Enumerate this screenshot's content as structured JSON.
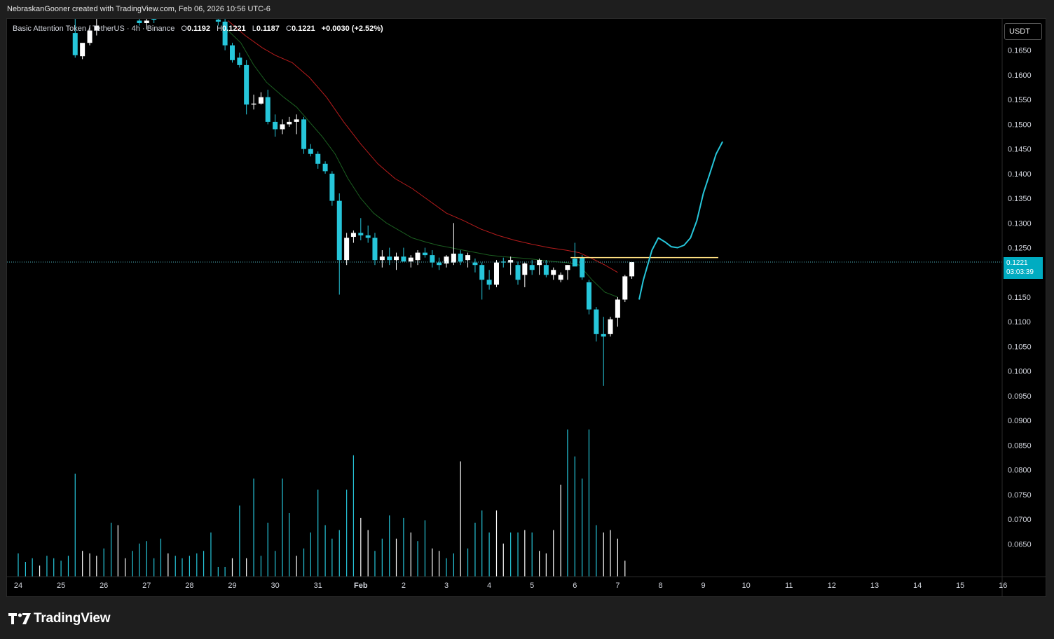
{
  "header": {
    "credit": "NebraskanGooner created with TradingView.com, Feb 06, 2026 10:56 UTC-6"
  },
  "legend": {
    "symbol": "Basic Attention Token / TetherUS · 4h · Binance",
    "o_label": "O",
    "o_value": "0.1192",
    "h_label": "H",
    "h_value": "0.1221",
    "l_label": "L",
    "l_value": "0.1187",
    "c_label": "C",
    "c_value": "0.1221",
    "change": "+0.0030 (+2.52%)"
  },
  "price_axis": {
    "unit_button": "USDT",
    "last_price": "0.1221",
    "countdown": "03:03:39"
  },
  "footer": {
    "logo_icon": "tradingview-logo-icon",
    "brand": "TradingView"
  },
  "colors": {
    "background": "#000000",
    "bear_candle": "#26c6da",
    "bull_candle": "#ffffff",
    "ema_fast": "#1b5e20",
    "ema_slow": "#b71c1c",
    "projection": "#26c6da",
    "resistance": "#ffe082",
    "price_tag": "#00acc1",
    "axis_text": "#d1d4dc"
  },
  "chart_data": {
    "type": "candlestick",
    "timeframe": "4h",
    "yaxis_ticks": [
      "0.1650",
      "0.1600",
      "0.1550",
      "0.1500",
      "0.1450",
      "0.1400",
      "0.1350",
      "0.1300",
      "0.1250",
      "0.1200",
      "0.1150",
      "0.1100",
      "0.1050",
      "0.1000",
      "0.0950",
      "0.0900",
      "0.0850",
      "0.0800",
      "0.0750",
      "0.0700",
      "0.0650"
    ],
    "ylim": [
      0.0595,
      0.1705
    ],
    "xaxis_ticks": [
      "24",
      "25",
      "26",
      "27",
      "28",
      "29",
      "30",
      "31",
      "Feb",
      "2",
      "3",
      "4",
      "5",
      "6",
      "7",
      "8",
      "9",
      "10",
      "11",
      "12",
      "13",
      "14",
      "15",
      "16"
    ],
    "xaxis_start_day": 24,
    "candles": [
      {
        "d": 25.33,
        "o": 0.1685,
        "h": 0.1735,
        "l": 0.1635,
        "c": 0.164
      },
      {
        "d": 25.5,
        "o": 0.1638,
        "h": 0.166,
        "l": 0.1632,
        "c": 0.1665
      },
      {
        "d": 25.67,
        "o": 0.1665,
        "h": 0.17,
        "l": 0.166,
        "c": 0.169
      },
      {
        "d": 25.83,
        "o": 0.169,
        "h": 0.172,
        "l": 0.168,
        "c": 0.17
      },
      {
        "d": 26.83,
        "o": 0.171,
        "h": 0.1725,
        "l": 0.17,
        "c": 0.1705
      },
      {
        "d": 27.0,
        "o": 0.1705,
        "h": 0.1715,
        "l": 0.1692,
        "c": 0.171
      },
      {
        "d": 27.17,
        "o": 0.1715,
        "h": 0.1728,
        "l": 0.1705,
        "c": 0.1712
      },
      {
        "d": 28.67,
        "o": 0.1712,
        "h": 0.1725,
        "l": 0.17,
        "c": 0.1708
      },
      {
        "d": 28.83,
        "o": 0.1708,
        "h": 0.1715,
        "l": 0.169,
        "c": 0.1685
      },
      {
        "d": 28.83,
        "o": 0.169,
        "h": 0.17,
        "l": 0.165,
        "c": 0.166
      },
      {
        "d": 29.0,
        "o": 0.166,
        "h": 0.1665,
        "l": 0.1625,
        "c": 0.163
      },
      {
        "d": 29.17,
        "o": 0.1635,
        "h": 0.1645,
        "l": 0.1615,
        "c": 0.162
      },
      {
        "d": 29.33,
        "o": 0.162,
        "h": 0.163,
        "l": 0.152,
        "c": 0.154
      },
      {
        "d": 29.5,
        "o": 0.154,
        "h": 0.156,
        "l": 0.153,
        "c": 0.1542
      },
      {
        "d": 29.67,
        "o": 0.1542,
        "h": 0.1565,
        "l": 0.154,
        "c": 0.1555
      },
      {
        "d": 29.83,
        "o": 0.1555,
        "h": 0.157,
        "l": 0.15,
        "c": 0.1505
      },
      {
        "d": 30.0,
        "o": 0.1505,
        "h": 0.152,
        "l": 0.1475,
        "c": 0.149
      },
      {
        "d": 30.17,
        "o": 0.149,
        "h": 0.151,
        "l": 0.148,
        "c": 0.15
      },
      {
        "d": 30.33,
        "o": 0.15,
        "h": 0.1515,
        "l": 0.1495,
        "c": 0.1505
      },
      {
        "d": 30.5,
        "o": 0.1505,
        "h": 0.152,
        "l": 0.148,
        "c": 0.151
      },
      {
        "d": 30.67,
        "o": 0.151,
        "h": 0.1515,
        "l": 0.144,
        "c": 0.145
      },
      {
        "d": 30.83,
        "o": 0.145,
        "h": 0.146,
        "l": 0.1435,
        "c": 0.144
      },
      {
        "d": 31.0,
        "o": 0.144,
        "h": 0.1445,
        "l": 0.141,
        "c": 0.142
      },
      {
        "d": 31.17,
        "o": 0.142,
        "h": 0.1425,
        "l": 0.14,
        "c": 0.1405
      },
      {
        "d": 31.33,
        "o": 0.14,
        "h": 0.1405,
        "l": 0.1335,
        "c": 0.1345
      },
      {
        "d": 31.5,
        "o": 0.1345,
        "h": 0.136,
        "l": 0.1155,
        "c": 0.1225
      },
      {
        "d": 31.67,
        "o": 0.1225,
        "h": 0.128,
        "l": 0.1215,
        "c": 0.127
      },
      {
        "d": 31.83,
        "o": 0.1272,
        "h": 0.1285,
        "l": 0.126,
        "c": 0.128
      },
      {
        "d": 32.0,
        "o": 0.128,
        "h": 0.131,
        "l": 0.1265,
        "c": 0.1275
      },
      {
        "d": 32.17,
        "o": 0.1275,
        "h": 0.1295,
        "l": 0.126,
        "c": 0.127
      },
      {
        "d": 32.33,
        "o": 0.127,
        "h": 0.128,
        "l": 0.1215,
        "c": 0.1225
      },
      {
        "d": 32.5,
        "o": 0.1225,
        "h": 0.1245,
        "l": 0.121,
        "c": 0.1232
      },
      {
        "d": 32.67,
        "o": 0.1232,
        "h": 0.125,
        "l": 0.1215,
        "c": 0.1225
      },
      {
        "d": 32.83,
        "o": 0.1225,
        "h": 0.124,
        "l": 0.1205,
        "c": 0.1232
      },
      {
        "d": 33.0,
        "o": 0.1232,
        "h": 0.125,
        "l": 0.1225,
        "c": 0.1222
      },
      {
        "d": 33.17,
        "o": 0.1222,
        "h": 0.1235,
        "l": 0.121,
        "c": 0.123
      },
      {
        "d": 33.33,
        "o": 0.1225,
        "h": 0.1245,
        "l": 0.1215,
        "c": 0.124
      },
      {
        "d": 33.5,
        "o": 0.124,
        "h": 0.125,
        "l": 0.123,
        "c": 0.1235
      },
      {
        "d": 33.67,
        "o": 0.1235,
        "h": 0.1245,
        "l": 0.121,
        "c": 0.122
      },
      {
        "d": 33.83,
        "o": 0.122,
        "h": 0.123,
        "l": 0.1205,
        "c": 0.1215
      },
      {
        "d": 34.0,
        "o": 0.1218,
        "h": 0.1235,
        "l": 0.121,
        "c": 0.1232
      },
      {
        "d": 34.17,
        "o": 0.122,
        "h": 0.13,
        "l": 0.1215,
        "c": 0.1238
      },
      {
        "d": 34.33,
        "o": 0.1238,
        "h": 0.1245,
        "l": 0.1215,
        "c": 0.1222
      },
      {
        "d": 34.5,
        "o": 0.1225,
        "h": 0.124,
        "l": 0.121,
        "c": 0.1235
      },
      {
        "d": 34.67,
        "o": 0.122,
        "h": 0.1228,
        "l": 0.12,
        "c": 0.1215
      },
      {
        "d": 34.83,
        "o": 0.1215,
        "h": 0.122,
        "l": 0.1145,
        "c": 0.1185
      },
      {
        "d": 35.0,
        "o": 0.1185,
        "h": 0.1205,
        "l": 0.1165,
        "c": 0.1175
      },
      {
        "d": 35.17,
        "o": 0.1175,
        "h": 0.1225,
        "l": 0.117,
        "c": 0.122
      },
      {
        "d": 35.33,
        "o": 0.1222,
        "h": 0.123,
        "l": 0.121,
        "c": 0.122
      },
      {
        "d": 35.5,
        "o": 0.122,
        "h": 0.1232,
        "l": 0.1195,
        "c": 0.1225
      },
      {
        "d": 35.67,
        "o": 0.1215,
        "h": 0.1222,
        "l": 0.1175,
        "c": 0.1185
      },
      {
        "d": 35.83,
        "o": 0.1195,
        "h": 0.122,
        "l": 0.117,
        "c": 0.1218
      },
      {
        "d": 36.0,
        "o": 0.1215,
        "h": 0.1225,
        "l": 0.1195,
        "c": 0.1205
      },
      {
        "d": 36.17,
        "o": 0.1215,
        "h": 0.1228,
        "l": 0.1195,
        "c": 0.1225
      },
      {
        "d": 36.33,
        "o": 0.1215,
        "h": 0.1225,
        "l": 0.119,
        "c": 0.1195
      },
      {
        "d": 36.5,
        "o": 0.1195,
        "h": 0.121,
        "l": 0.1185,
        "c": 0.1205
      },
      {
        "d": 36.67,
        "o": 0.1185,
        "h": 0.12,
        "l": 0.118,
        "c": 0.1195
      },
      {
        "d": 36.83,
        "o": 0.1205,
        "h": 0.1215,
        "l": 0.1185,
        "c": 0.1215
      },
      {
        "d": 37.0,
        "o": 0.1228,
        "h": 0.126,
        "l": 0.1215,
        "c": 0.1212
      },
      {
        "d": 37.17,
        "o": 0.123,
        "h": 0.1235,
        "l": 0.1185,
        "c": 0.119
      },
      {
        "d": 37.33,
        "o": 0.118,
        "h": 0.1185,
        "l": 0.1115,
        "c": 0.1125
      },
      {
        "d": 37.5,
        "o": 0.1125,
        "h": 0.113,
        "l": 0.106,
        "c": 0.1075
      },
      {
        "d": 37.67,
        "o": 0.1075,
        "h": 0.111,
        "l": 0.097,
        "c": 0.107
      },
      {
        "d": 37.83,
        "o": 0.1075,
        "h": 0.111,
        "l": 0.107,
        "c": 0.1105
      },
      {
        "d": 38.0,
        "o": 0.1108,
        "h": 0.115,
        "l": 0.109,
        "c": 0.1145
      },
      {
        "d": 38.17,
        "o": 0.1145,
        "h": 0.1195,
        "l": 0.114,
        "c": 0.1192
      },
      {
        "d": 38.33,
        "o": 0.1192,
        "h": 0.1221,
        "l": 0.1187,
        "c": 0.1221
      }
    ],
    "volume_bars": [
      {
        "d": 24.0,
        "v": 0.19,
        "bull": false
      },
      {
        "d": 24.17,
        "v": 0.12,
        "bull": false
      },
      {
        "d": 24.33,
        "v": 0.15,
        "bull": false
      },
      {
        "d": 24.5,
        "v": 0.09,
        "bull": true
      },
      {
        "d": 24.67,
        "v": 0.17,
        "bull": false
      },
      {
        "d": 24.83,
        "v": 0.15,
        "bull": false
      },
      {
        "d": 25.0,
        "v": 0.13,
        "bull": false
      },
      {
        "d": 25.17,
        "v": 0.17,
        "bull": false
      },
      {
        "d": 25.33,
        "v": 0.84,
        "bull": false
      },
      {
        "d": 25.5,
        "v": 0.21,
        "bull": true
      },
      {
        "d": 25.67,
        "v": 0.19,
        "bull": true
      },
      {
        "d": 25.83,
        "v": 0.17,
        "bull": true
      },
      {
        "d": 26.0,
        "v": 0.23,
        "bull": false
      },
      {
        "d": 26.17,
        "v": 0.44,
        "bull": false
      },
      {
        "d": 26.33,
        "v": 0.42,
        "bull": true
      },
      {
        "d": 26.5,
        "v": 0.15,
        "bull": true
      },
      {
        "d": 26.67,
        "v": 0.21,
        "bull": false
      },
      {
        "d": 26.83,
        "v": 0.27,
        "bull": false
      },
      {
        "d": 27.0,
        "v": 0.29,
        "bull": false
      },
      {
        "d": 27.17,
        "v": 0.15,
        "bull": false
      },
      {
        "d": 27.33,
        "v": 0.31,
        "bull": false
      },
      {
        "d": 27.5,
        "v": 0.19,
        "bull": true
      },
      {
        "d": 27.67,
        "v": 0.17,
        "bull": false
      },
      {
        "d": 27.83,
        "v": 0.15,
        "bull": false
      },
      {
        "d": 28.0,
        "v": 0.17,
        "bull": false
      },
      {
        "d": 28.17,
        "v": 0.19,
        "bull": false
      },
      {
        "d": 28.33,
        "v": 0.21,
        "bull": false
      },
      {
        "d": 28.5,
        "v": 0.36,
        "bull": false
      },
      {
        "d": 28.67,
        "v": 0.08,
        "bull": false
      },
      {
        "d": 28.83,
        "v": 0.08,
        "bull": false
      },
      {
        "d": 29.0,
        "v": 0.15,
        "bull": true
      },
      {
        "d": 29.17,
        "v": 0.58,
        "bull": false
      },
      {
        "d": 29.33,
        "v": 0.15,
        "bull": true
      },
      {
        "d": 29.5,
        "v": 0.8,
        "bull": false
      },
      {
        "d": 29.67,
        "v": 0.17,
        "bull": false
      },
      {
        "d": 29.83,
        "v": 0.44,
        "bull": false
      },
      {
        "d": 30.0,
        "v": 0.21,
        "bull": false
      },
      {
        "d": 30.17,
        "v": 0.8,
        "bull": false
      },
      {
        "d": 30.33,
        "v": 0.52,
        "bull": false
      },
      {
        "d": 30.5,
        "v": 0.17,
        "bull": true
      },
      {
        "d": 30.67,
        "v": 0.23,
        "bull": false
      },
      {
        "d": 30.83,
        "v": 0.36,
        "bull": false
      },
      {
        "d": 31.0,
        "v": 0.71,
        "bull": false
      },
      {
        "d": 31.17,
        "v": 0.42,
        "bull": false
      },
      {
        "d": 31.33,
        "v": 0.31,
        "bull": false
      },
      {
        "d": 31.5,
        "v": 0.38,
        "bull": false
      },
      {
        "d": 31.67,
        "v": 0.71,
        "bull": false
      },
      {
        "d": 31.83,
        "v": 0.99,
        "bull": false
      },
      {
        "d": 32.0,
        "v": 0.48,
        "bull": true
      },
      {
        "d": 32.17,
        "v": 0.38,
        "bull": true
      },
      {
        "d": 32.33,
        "v": 0.21,
        "bull": false
      },
      {
        "d": 32.5,
        "v": 0.31,
        "bull": false
      },
      {
        "d": 32.67,
        "v": 0.5,
        "bull": false
      },
      {
        "d": 32.83,
        "v": 0.31,
        "bull": true
      },
      {
        "d": 33.0,
        "v": 0.48,
        "bull": false
      },
      {
        "d": 33.17,
        "v": 0.36,
        "bull": true
      },
      {
        "d": 33.33,
        "v": 0.29,
        "bull": false
      },
      {
        "d": 33.5,
        "v": 0.46,
        "bull": false
      },
      {
        "d": 33.67,
        "v": 0.23,
        "bull": true
      },
      {
        "d": 33.83,
        "v": 0.21,
        "bull": true
      },
      {
        "d": 34.0,
        "v": 0.15,
        "bull": false
      },
      {
        "d": 34.17,
        "v": 0.19,
        "bull": false
      },
      {
        "d": 34.33,
        "v": 0.94,
        "bull": true
      },
      {
        "d": 34.5,
        "v": 0.23,
        "bull": false
      },
      {
        "d": 34.67,
        "v": 0.44,
        "bull": false
      },
      {
        "d": 34.83,
        "v": 0.54,
        "bull": false
      },
      {
        "d": 35.0,
        "v": 0.36,
        "bull": false
      },
      {
        "d": 35.17,
        "v": 0.54,
        "bull": true
      },
      {
        "d": 35.33,
        "v": 0.27,
        "bull": true
      },
      {
        "d": 35.5,
        "v": 0.36,
        "bull": false
      },
      {
        "d": 35.67,
        "v": 0.36,
        "bull": false
      },
      {
        "d": 35.83,
        "v": 0.38,
        "bull": true
      },
      {
        "d": 36.0,
        "v": 0.36,
        "bull": false
      },
      {
        "d": 36.17,
        "v": 0.21,
        "bull": true
      },
      {
        "d": 36.33,
        "v": 0.19,
        "bull": true
      },
      {
        "d": 36.5,
        "v": 0.38,
        "bull": true
      },
      {
        "d": 36.67,
        "v": 0.75,
        "bull": true
      },
      {
        "d": 36.83,
        "v": 1.2,
        "bull": false
      },
      {
        "d": 37.0,
        "v": 0.98,
        "bull": false
      },
      {
        "d": 37.17,
        "v": 0.8,
        "bull": false
      },
      {
        "d": 37.33,
        "v": 1.2,
        "bull": false
      },
      {
        "d": 37.5,
        "v": 0.42,
        "bull": false
      },
      {
        "d": 37.67,
        "v": 0.36,
        "bull": true
      },
      {
        "d": 37.83,
        "v": 0.38,
        "bull": true
      },
      {
        "d": 38.0,
        "v": 0.31,
        "bull": true
      },
      {
        "d": 38.17,
        "v": 0.13,
        "bull": true
      }
    ],
    "ema_fast": [
      [
        28.9,
        0.169
      ],
      [
        29.2,
        0.1665
      ],
      [
        29.5,
        0.162
      ],
      [
        29.8,
        0.1585
      ],
      [
        30.2,
        0.1555
      ],
      [
        30.5,
        0.1535
      ],
      [
        30.8,
        0.1505
      ],
      [
        31.1,
        0.1475
      ],
      [
        31.4,
        0.144
      ],
      [
        31.7,
        0.139
      ],
      [
        32.0,
        0.135
      ],
      [
        32.3,
        0.132
      ],
      [
        32.6,
        0.13
      ],
      [
        32.9,
        0.1285
      ],
      [
        33.2,
        0.127
      ],
      [
        33.5,
        0.1262
      ],
      [
        33.8,
        0.1255
      ],
      [
        34.1,
        0.125
      ],
      [
        34.4,
        0.1245
      ],
      [
        34.7,
        0.124
      ],
      [
        35.0,
        0.1235
      ],
      [
        35.3,
        0.1232
      ],
      [
        35.6,
        0.123
      ],
      [
        35.9,
        0.1228
      ],
      [
        36.2,
        0.1225
      ],
      [
        36.5,
        0.1222
      ],
      [
        36.8,
        0.122
      ],
      [
        37.1,
        0.1215
      ],
      [
        37.4,
        0.1185
      ],
      [
        37.7,
        0.116
      ],
      [
        38.0,
        0.115
      ]
    ],
    "ema_slow": [
      [
        28.9,
        0.171
      ],
      [
        29.3,
        0.168
      ],
      [
        29.7,
        0.1655
      ],
      [
        30.0,
        0.164
      ],
      [
        30.4,
        0.1625
      ],
      [
        30.8,
        0.1595
      ],
      [
        31.2,
        0.1555
      ],
      [
        31.6,
        0.1505
      ],
      [
        32.0,
        0.146
      ],
      [
        32.4,
        0.142
      ],
      [
        32.8,
        0.139
      ],
      [
        33.2,
        0.137
      ],
      [
        33.6,
        0.1345
      ],
      [
        34.0,
        0.132
      ],
      [
        34.4,
        0.1305
      ],
      [
        34.8,
        0.1288
      ],
      [
        35.2,
        0.1275
      ],
      [
        35.6,
        0.1265
      ],
      [
        36.0,
        0.1257
      ],
      [
        36.4,
        0.125
      ],
      [
        36.8,
        0.1245
      ],
      [
        37.1,
        0.124
      ],
      [
        37.4,
        0.1228
      ],
      [
        37.7,
        0.1215
      ],
      [
        38.0,
        0.12
      ]
    ],
    "projection": [
      [
        38.5,
        0.1145
      ],
      [
        38.6,
        0.1185
      ],
      [
        38.7,
        0.1215
      ],
      [
        38.8,
        0.1245
      ],
      [
        38.95,
        0.127
      ],
      [
        39.1,
        0.1262
      ],
      [
        39.25,
        0.1252
      ],
      [
        39.4,
        0.125
      ],
      [
        39.55,
        0.1255
      ],
      [
        39.7,
        0.127
      ],
      [
        39.85,
        0.1305
      ],
      [
        40.0,
        0.136
      ],
      [
        40.15,
        0.14
      ],
      [
        40.3,
        0.144
      ],
      [
        40.45,
        0.1465
      ]
    ],
    "resistance": {
      "price": 0.123,
      "from": 36.9,
      "to": 40.35
    },
    "last_price_value": 0.1221
  }
}
